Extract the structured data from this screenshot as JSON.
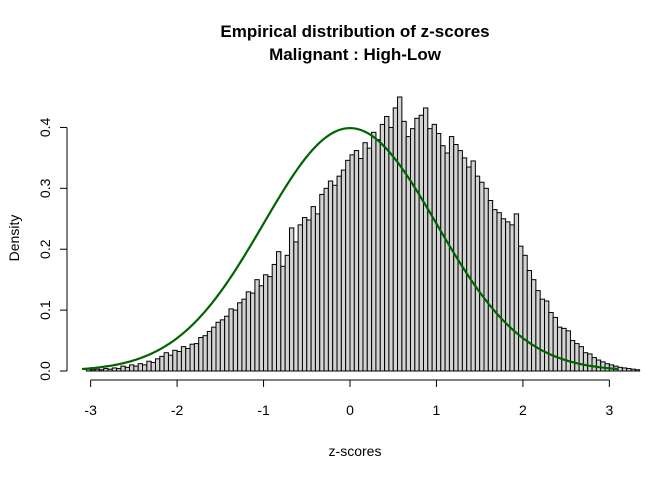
{
  "chart_data": {
    "type": "bar",
    "subtype": "histogram",
    "title": "Empirical distribution of z-scores",
    "subtitle": "Malignant : High-Low",
    "xlabel": "z-scores",
    "ylabel": "Density",
    "xlim": [
      -3.1,
      3.1
    ],
    "ylim": [
      0,
      0.45
    ],
    "x_ticks": [
      -3,
      -2,
      -1,
      0,
      1,
      2,
      3
    ],
    "y_ticks": [
      0.0,
      0.1,
      0.2,
      0.3,
      0.4
    ],
    "y_tick_labels": [
      "0.0",
      "0.1",
      "0.2",
      "0.3",
      "0.4"
    ],
    "grid": false,
    "bin_start": -3.05,
    "bin_width": 0.05,
    "values": [
      0.003,
      0.002,
      0.003,
      0.002,
      0.004,
      0.003,
      0.005,
      0.004,
      0.008,
      0.006,
      0.01,
      0.008,
      0.012,
      0.01,
      0.016,
      0.014,
      0.02,
      0.024,
      0.03,
      0.026,
      0.034,
      0.032,
      0.04,
      0.037,
      0.044,
      0.045,
      0.055,
      0.058,
      0.065,
      0.072,
      0.08,
      0.084,
      0.09,
      0.102,
      0.1,
      0.112,
      0.118,
      0.13,
      0.128,
      0.15,
      0.14,
      0.158,
      0.155,
      0.175,
      0.196,
      0.172,
      0.19,
      0.235,
      0.212,
      0.24,
      0.252,
      0.248,
      0.27,
      0.258,
      0.29,
      0.3,
      0.312,
      0.305,
      0.32,
      0.33,
      0.346,
      0.355,
      0.362,
      0.349,
      0.375,
      0.366,
      0.392,
      0.38,
      0.405,
      0.418,
      0.4,
      0.432,
      0.45,
      0.41,
      0.385,
      0.398,
      0.415,
      0.42,
      0.432,
      0.398,
      0.405,
      0.39,
      0.37,
      0.358,
      0.385,
      0.372,
      0.362,
      0.35,
      0.335,
      0.345,
      0.32,
      0.31,
      0.3,
      0.28,
      0.265,
      0.26,
      0.25,
      0.245,
      0.24,
      0.258,
      0.205,
      0.19,
      0.165,
      0.15,
      0.132,
      0.118,
      0.115,
      0.096,
      0.088,
      0.072,
      0.07,
      0.066,
      0.05,
      0.045,
      0.04,
      0.03,
      0.028,
      0.022,
      0.018,
      0.015,
      0.012,
      0.01,
      0.008,
      0.006,
      0.005,
      0.004,
      0.003,
      0.002
    ],
    "series": [
      {
        "type": "line",
        "color": "#006400",
        "function": "standard normal density"
      }
    ],
    "colors": {
      "bar_fill": "#d3d3d3",
      "bar_stroke": "#000000",
      "curve": "#006400"
    }
  }
}
